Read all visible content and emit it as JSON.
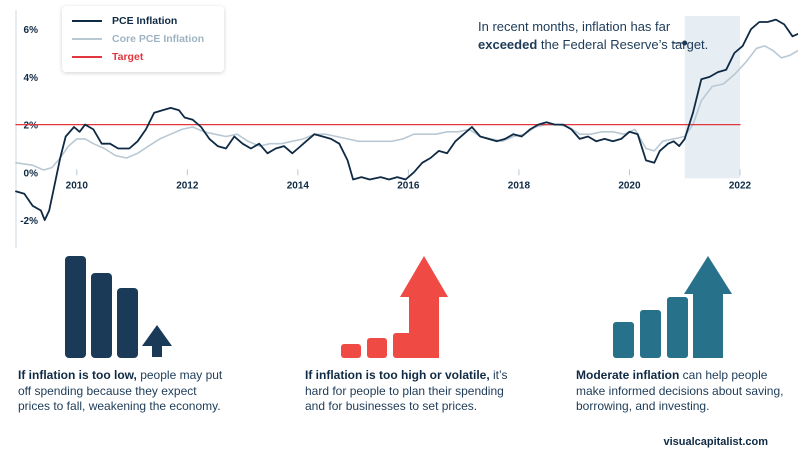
{
  "chart_data": {
    "type": "line",
    "title": "",
    "xlabel": "",
    "ylabel": "",
    "xlim": [
      2008.9,
      2023.05
    ],
    "ylim": [
      -2.5,
      6.3
    ],
    "x_ticks": [
      2010,
      2012,
      2014,
      2016,
      2018,
      2020,
      2022
    ],
    "x_tick_labels": [
      "2010",
      "2012",
      "2014",
      "2016",
      "2018",
      "2020",
      "2022"
    ],
    "y_ticks": [
      -2,
      0,
      2,
      4,
      6
    ],
    "y_tick_labels": [
      "-2%",
      "0%",
      "2%",
      "4%",
      "6%"
    ],
    "legend": [
      "PCE Inflation",
      "Core PCE Inflation",
      "Target"
    ],
    "series": [
      {
        "name": "PCE Inflation",
        "color": "#0f2a44",
        "points": [
          [
            2008.9,
            -0.8
          ],
          [
            2009.05,
            -0.9
          ],
          [
            2009.2,
            -1.4
          ],
          [
            2009.35,
            -1.6
          ],
          [
            2009.42,
            -2.0
          ],
          [
            2009.5,
            -1.6
          ],
          [
            2009.6,
            -0.5
          ],
          [
            2009.7,
            0.6
          ],
          [
            2009.8,
            1.5
          ],
          [
            2009.95,
            1.9
          ],
          [
            2010.05,
            1.7
          ],
          [
            2010.15,
            2.0
          ],
          [
            2010.3,
            1.8
          ],
          [
            2010.45,
            1.2
          ],
          [
            2010.6,
            1.2
          ],
          [
            2010.75,
            1.0
          ],
          [
            2010.95,
            1.0
          ],
          [
            2011.1,
            1.3
          ],
          [
            2011.25,
            1.8
          ],
          [
            2011.4,
            2.5
          ],
          [
            2011.55,
            2.6
          ],
          [
            2011.7,
            2.7
          ],
          [
            2011.85,
            2.6
          ],
          [
            2011.95,
            2.3
          ],
          [
            2012.1,
            2.2
          ],
          [
            2012.25,
            1.9
          ],
          [
            2012.4,
            1.4
          ],
          [
            2012.55,
            1.1
          ],
          [
            2012.7,
            1.0
          ],
          [
            2012.85,
            1.5
          ],
          [
            2013.0,
            1.2
          ],
          [
            2013.15,
            1.0
          ],
          [
            2013.3,
            1.2
          ],
          [
            2013.45,
            0.8
          ],
          [
            2013.6,
            1.0
          ],
          [
            2013.75,
            1.1
          ],
          [
            2013.9,
            0.8
          ],
          [
            2014.0,
            1.0
          ],
          [
            2014.15,
            1.3
          ],
          [
            2014.3,
            1.6
          ],
          [
            2014.45,
            1.5
          ],
          [
            2014.6,
            1.4
          ],
          [
            2014.75,
            1.2
          ],
          [
            2014.9,
            0.5
          ],
          [
            2015.0,
            -0.3
          ],
          [
            2015.15,
            -0.2
          ],
          [
            2015.3,
            -0.3
          ],
          [
            2015.5,
            -0.2
          ],
          [
            2015.65,
            -0.3
          ],
          [
            2015.8,
            -0.2
          ],
          [
            2015.95,
            -0.3
          ],
          [
            2016.1,
            0.0
          ],
          [
            2016.25,
            0.4
          ],
          [
            2016.4,
            0.6
          ],
          [
            2016.55,
            0.9
          ],
          [
            2016.7,
            0.8
          ],
          [
            2016.85,
            1.3
          ],
          [
            2017.0,
            1.6
          ],
          [
            2017.15,
            1.9
          ],
          [
            2017.3,
            1.5
          ],
          [
            2017.45,
            1.4
          ],
          [
            2017.6,
            1.3
          ],
          [
            2017.75,
            1.4
          ],
          [
            2017.9,
            1.6
          ],
          [
            2018.05,
            1.5
          ],
          [
            2018.2,
            1.8
          ],
          [
            2018.35,
            2.0
          ],
          [
            2018.5,
            2.1
          ],
          [
            2018.65,
            2.0
          ],
          [
            2018.8,
            2.0
          ],
          [
            2018.95,
            1.8
          ],
          [
            2019.1,
            1.4
          ],
          [
            2019.25,
            1.5
          ],
          [
            2019.4,
            1.3
          ],
          [
            2019.55,
            1.4
          ],
          [
            2019.7,
            1.3
          ],
          [
            2019.85,
            1.4
          ],
          [
            2020.0,
            1.7
          ],
          [
            2020.15,
            1.6
          ],
          [
            2020.3,
            0.5
          ],
          [
            2020.45,
            0.4
          ],
          [
            2020.55,
            0.9
          ],
          [
            2020.7,
            1.2
          ],
          [
            2020.8,
            1.3
          ],
          [
            2020.9,
            1.1
          ],
          [
            2021.0,
            1.4
          ],
          [
            2021.15,
            2.5
          ],
          [
            2021.3,
            3.9
          ],
          [
            2021.45,
            4.0
          ],
          [
            2021.6,
            4.2
          ],
          [
            2021.75,
            4.3
          ],
          [
            2021.9,
            5.0
          ],
          [
            2022.05,
            5.3
          ],
          [
            2022.2,
            6.0
          ],
          [
            2022.35,
            6.3
          ],
          [
            2022.5,
            6.3
          ],
          [
            2022.65,
            6.4
          ],
          [
            2022.8,
            6.2
          ],
          [
            2022.95,
            5.7
          ],
          [
            2023.05,
            5.8
          ]
        ]
      },
      {
        "name": "Core PCE Inflation",
        "color": "#b9c9d4",
        "points": [
          [
            2008.9,
            0.4
          ],
          [
            2009.2,
            0.3
          ],
          [
            2009.4,
            0.1
          ],
          [
            2009.55,
            0.2
          ],
          [
            2009.7,
            0.6
          ],
          [
            2009.85,
            1.1
          ],
          [
            2010.0,
            1.4
          ],
          [
            2010.15,
            1.4
          ],
          [
            2010.3,
            1.2
          ],
          [
            2010.5,
            1.0
          ],
          [
            2010.7,
            0.7
          ],
          [
            2010.9,
            0.6
          ],
          [
            2011.1,
            0.8
          ],
          [
            2011.3,
            1.1
          ],
          [
            2011.5,
            1.4
          ],
          [
            2011.7,
            1.6
          ],
          [
            2011.9,
            1.8
          ],
          [
            2012.1,
            1.9
          ],
          [
            2012.3,
            1.7
          ],
          [
            2012.5,
            1.6
          ],
          [
            2012.7,
            1.5
          ],
          [
            2012.9,
            1.6
          ],
          [
            2013.1,
            1.3
          ],
          [
            2013.3,
            1.1
          ],
          [
            2013.5,
            1.2
          ],
          [
            2013.7,
            1.2
          ],
          [
            2013.9,
            1.3
          ],
          [
            2014.1,
            1.4
          ],
          [
            2014.3,
            1.6
          ],
          [
            2014.5,
            1.6
          ],
          [
            2014.7,
            1.5
          ],
          [
            2014.9,
            1.4
          ],
          [
            2015.1,
            1.3
          ],
          [
            2015.3,
            1.3
          ],
          [
            2015.5,
            1.3
          ],
          [
            2015.7,
            1.3
          ],
          [
            2015.9,
            1.4
          ],
          [
            2016.1,
            1.6
          ],
          [
            2016.3,
            1.6
          ],
          [
            2016.5,
            1.6
          ],
          [
            2016.7,
            1.7
          ],
          [
            2016.9,
            1.7
          ],
          [
            2017.1,
            1.8
          ],
          [
            2017.3,
            1.5
          ],
          [
            2017.5,
            1.4
          ],
          [
            2017.7,
            1.3
          ],
          [
            2017.9,
            1.5
          ],
          [
            2018.1,
            1.6
          ],
          [
            2018.3,
            1.9
          ],
          [
            2018.5,
            2.0
          ],
          [
            2018.7,
            2.0
          ],
          [
            2018.9,
            1.9
          ],
          [
            2019.1,
            1.6
          ],
          [
            2019.3,
            1.6
          ],
          [
            2019.5,
            1.7
          ],
          [
            2019.7,
            1.7
          ],
          [
            2019.9,
            1.6
          ],
          [
            2020.1,
            1.8
          ],
          [
            2020.3,
            1.0
          ],
          [
            2020.45,
            0.9
          ],
          [
            2020.6,
            1.3
          ],
          [
            2020.8,
            1.4
          ],
          [
            2021.0,
            1.5
          ],
          [
            2021.15,
            2.0
          ],
          [
            2021.3,
            3.0
          ],
          [
            2021.5,
            3.6
          ],
          [
            2021.7,
            3.7
          ],
          [
            2021.9,
            4.1
          ],
          [
            2022.1,
            4.6
          ],
          [
            2022.3,
            5.2
          ],
          [
            2022.45,
            5.3
          ],
          [
            2022.6,
            5.1
          ],
          [
            2022.75,
            4.8
          ],
          [
            2022.9,
            4.9
          ],
          [
            2023.05,
            5.1
          ]
        ]
      },
      {
        "name": "Target",
        "color": "#e2373f",
        "points": [
          [
            2008.9,
            2.0
          ],
          [
            2022.0,
            2.0
          ]
        ]
      }
    ],
    "highlight_range": [
      2021.0,
      2022.0
    ],
    "annotation_anchor": [
      2021.0,
      6.0
    ]
  },
  "annotation": {
    "line1": "In recent months, inflation has far",
    "emphasis": "exceeded",
    "line2_rest": " the Federal Reserve’s target."
  },
  "sections": [
    {
      "bold": "If inflation is too low,",
      "text": " people may put off spending because they expect prices to fall, weakening the economy.",
      "color": "#1b3a57",
      "bars": [
        1.0,
        0.75,
        0.6
      ]
    },
    {
      "bold": "If inflation is too high or volatile,",
      "text": " it’s hard for people to plan their spending and for businesses to set prices.",
      "color": "#f04a45",
      "bars": [
        0.12,
        0.2,
        0.24
      ]
    },
    {
      "bold": "Moderate inflation",
      "text": " can help people make informed decisions about saving, borrowing, and investing.",
      "color": "#27718a",
      "bars": [
        0.34,
        0.45,
        0.58
      ]
    }
  ],
  "footer": "visualcapitalist.com"
}
